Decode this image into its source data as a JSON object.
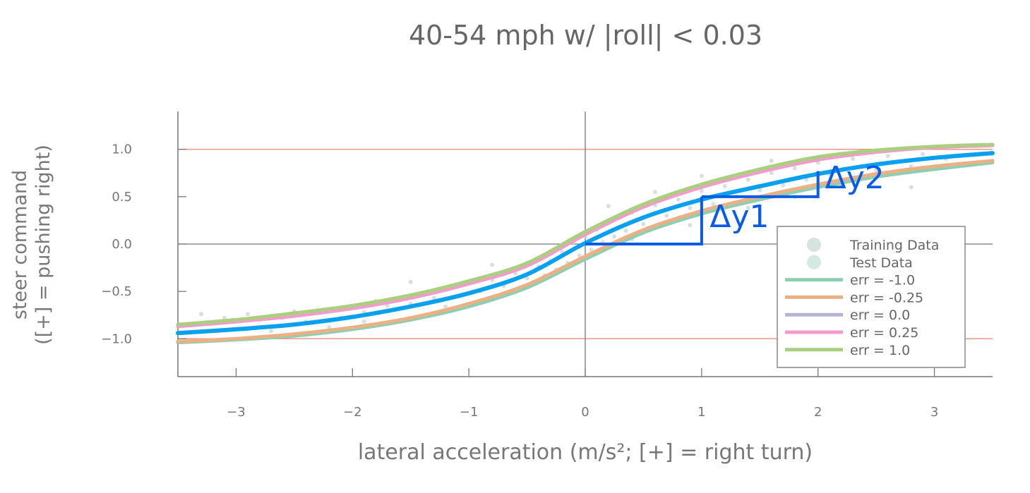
{
  "chart_data": {
    "type": "line",
    "title": "40-54 mph w/ |roll| < 0.03",
    "xlabel": "lateral acceleration (m/s²; [+] = right turn)",
    "ylabel_lines": [
      "steer command",
      "([+] = pushing right)"
    ],
    "xlim": [
      -3.5,
      3.5
    ],
    "ylim": [
      -1.4,
      1.4
    ],
    "xticks": [
      -3,
      -2,
      -1,
      0,
      1,
      2,
      3
    ],
    "xtick_labels": [
      "−3",
      "−2",
      "−1",
      "0",
      "1",
      "2",
      "3"
    ],
    "yticks": [
      1.0,
      0.5,
      0.0,
      -0.5,
      -1.0
    ],
    "ytick_labels": [
      "1.0",
      "0.5",
      "0.0",
      "−0.5",
      "−1.0"
    ],
    "hlines": [
      {
        "y": 1.0,
        "color": "#f0958a"
      },
      {
        "y": -1.0,
        "color": "#f0958a"
      }
    ],
    "zero_axes": true,
    "legend": {
      "placement": "right-center",
      "entries": [
        {
          "label": "Training Data",
          "kind": "marker",
          "color": "#d8e2df"
        },
        {
          "label": "Test Data",
          "kind": "marker",
          "color": "#d6e8e4"
        },
        {
          "label": "err = -1.0",
          "kind": "line",
          "color": "#8ccfb3"
        },
        {
          "label": "err = -0.25",
          "kind": "line",
          "color": "#ebb185"
        },
        {
          "label": "err = 0.0",
          "kind": "line",
          "color": "#b3b3d4"
        },
        {
          "label": "err = 0.25",
          "kind": "line",
          "color": "#f19ccc"
        },
        {
          "label": "err = 1.0",
          "kind": "line",
          "color": "#aad07f"
        }
      ]
    },
    "x": [
      -3.5,
      -3.0,
      -2.5,
      -2.0,
      -1.5,
      -1.0,
      -0.5,
      0.0,
      0.5,
      1.0,
      1.5,
      2.0,
      2.5,
      3.0,
      3.5
    ],
    "series": [
      {
        "name": "err = -1.0",
        "color": "#8ccfb3",
        "width": 5,
        "values": [
          -1.04,
          -1.01,
          -0.97,
          -0.9,
          -0.8,
          -0.66,
          -0.46,
          -0.16,
          0.12,
          0.32,
          0.47,
          0.6,
          0.71,
          0.79,
          0.86
        ]
      },
      {
        "name": "err = -0.25",
        "color": "#ebb185",
        "width": 5,
        "values": [
          -1.03,
          -1.0,
          -0.95,
          -0.88,
          -0.78,
          -0.63,
          -0.43,
          -0.13,
          0.15,
          0.35,
          0.5,
          0.63,
          0.74,
          0.82,
          0.88
        ]
      },
      {
        "name": "err = 0.0",
        "color": "#b3b3d4",
        "width": 4,
        "values": [
          -0.94,
          -0.9,
          -0.85,
          -0.77,
          -0.66,
          -0.52,
          -0.32,
          0.01,
          0.28,
          0.47,
          0.61,
          0.74,
          0.84,
          0.91,
          0.96
        ]
      },
      {
        "name": "err = 0.25",
        "color": "#f19ccc",
        "width": 5,
        "values": [
          -0.87,
          -0.82,
          -0.76,
          -0.68,
          -0.57,
          -0.42,
          -0.23,
          0.1,
          0.39,
          0.6,
          0.76,
          0.89,
          0.97,
          1.02,
          1.04
        ]
      },
      {
        "name": "err = 1.0",
        "color": "#aad07f",
        "width": 5,
        "values": [
          -0.85,
          -0.8,
          -0.73,
          -0.65,
          -0.54,
          -0.39,
          -0.2,
          0.13,
          0.42,
          0.63,
          0.79,
          0.92,
          0.99,
          1.03,
          1.05
        ]
      },
      {
        "name": "",
        "color": "#0aa0f0",
        "width": 6,
        "values": [
          -0.94,
          -0.9,
          -0.85,
          -0.77,
          -0.66,
          -0.52,
          -0.32,
          0.01,
          0.28,
          0.47,
          0.61,
          0.74,
          0.84,
          0.91,
          0.96
        ]
      }
    ],
    "annotations": [
      {
        "label": "Δy1",
        "color": "#0a5ce6",
        "step": [
          [
            0.0,
            0.0
          ],
          [
            1.0,
            0.0
          ],
          [
            1.0,
            0.5
          ]
        ],
        "text_at": [
          1.07,
          0.18
        ]
      },
      {
        "label": "Δy2",
        "color": "#0a5ce6",
        "step": [
          [
            1.0,
            0.5
          ],
          [
            2.0,
            0.5
          ],
          [
            2.0,
            0.77
          ]
        ],
        "text_at": [
          2.06,
          0.59
        ]
      }
    ],
    "scatter": {
      "color": "#c9d6d3",
      "points": [
        [
          -3.3,
          -0.74
        ],
        [
          -3.1,
          -0.78
        ],
        [
          -2.9,
          -0.74
        ],
        [
          -2.8,
          -0.8
        ],
        [
          -2.6,
          -0.78
        ],
        [
          -2.5,
          -0.71
        ],
        [
          -2.4,
          -0.82
        ],
        [
          -2.3,
          -0.72
        ],
        [
          -2.2,
          -0.69
        ],
        [
          -2.1,
          -0.78
        ],
        [
          -2.0,
          -0.66
        ],
        [
          -1.9,
          -0.72
        ],
        [
          -1.8,
          -0.6
        ],
        [
          -1.7,
          -0.65
        ],
        [
          -1.6,
          -0.58
        ],
        [
          -1.5,
          -0.63
        ],
        [
          -1.4,
          -0.52
        ],
        [
          -1.3,
          -0.57
        ],
        [
          -1.2,
          -0.48
        ],
        [
          -1.1,
          -0.55
        ],
        [
          -1.0,
          -0.42
        ],
        [
          -0.9,
          -0.5
        ],
        [
          -0.8,
          -0.38
        ],
        [
          -0.7,
          -0.44
        ],
        [
          -0.6,
          -0.31
        ],
        [
          -0.5,
          -0.36
        ],
        [
          -0.4,
          -0.24
        ],
        [
          -0.35,
          -0.33
        ],
        [
          -0.3,
          -0.18
        ],
        [
          -0.25,
          -0.27
        ],
        [
          -0.2,
          -0.08
        ],
        [
          -0.15,
          -0.2
        ],
        [
          -0.1,
          0.02
        ],
        [
          -0.05,
          -0.12
        ],
        [
          0.0,
          0.08
        ],
        [
          0.05,
          -0.06
        ],
        [
          0.1,
          0.15
        ],
        [
          0.15,
          0.02
        ],
        [
          0.2,
          0.22
        ],
        [
          0.25,
          0.08
        ],
        [
          0.3,
          0.28
        ],
        [
          0.35,
          0.14
        ],
        [
          0.4,
          0.33
        ],
        [
          0.5,
          0.21
        ],
        [
          0.6,
          0.41
        ],
        [
          0.7,
          0.3
        ],
        [
          0.8,
          0.47
        ],
        [
          0.9,
          0.38
        ],
        [
          1.0,
          0.56
        ],
        [
          1.1,
          0.42
        ],
        [
          1.2,
          0.61
        ],
        [
          1.3,
          0.5
        ],
        [
          1.4,
          0.68
        ],
        [
          1.5,
          0.57
        ],
        [
          1.6,
          0.75
        ],
        [
          1.7,
          0.62
        ],
        [
          1.8,
          0.8
        ],
        [
          1.9,
          0.68
        ],
        [
          2.0,
          0.86
        ],
        [
          2.1,
          0.74
        ],
        [
          2.3,
          0.9
        ],
        [
          2.5,
          0.78
        ],
        [
          2.6,
          0.93
        ],
        [
          2.8,
          0.82
        ],
        [
          2.9,
          0.95
        ],
        [
          3.1,
          0.9
        ],
        [
          -2.2,
          -0.88
        ],
        [
          -1.9,
          -0.82
        ],
        [
          -1.2,
          -0.66
        ],
        [
          -0.6,
          -0.5
        ],
        [
          0.4,
          0.05
        ],
        [
          0.9,
          0.2
        ],
        [
          1.4,
          0.38
        ],
        [
          1.8,
          0.5
        ],
        [
          2.2,
          0.62
        ],
        [
          2.8,
          0.6
        ],
        [
          -1.5,
          -0.4
        ],
        [
          -0.8,
          -0.22
        ],
        [
          0.2,
          0.4
        ],
        [
          0.6,
          0.55
        ],
        [
          1.0,
          0.72
        ],
        [
          1.6,
          0.88
        ],
        [
          2.4,
          0.97
        ],
        [
          -2.7,
          -0.92
        ]
      ]
    }
  }
}
